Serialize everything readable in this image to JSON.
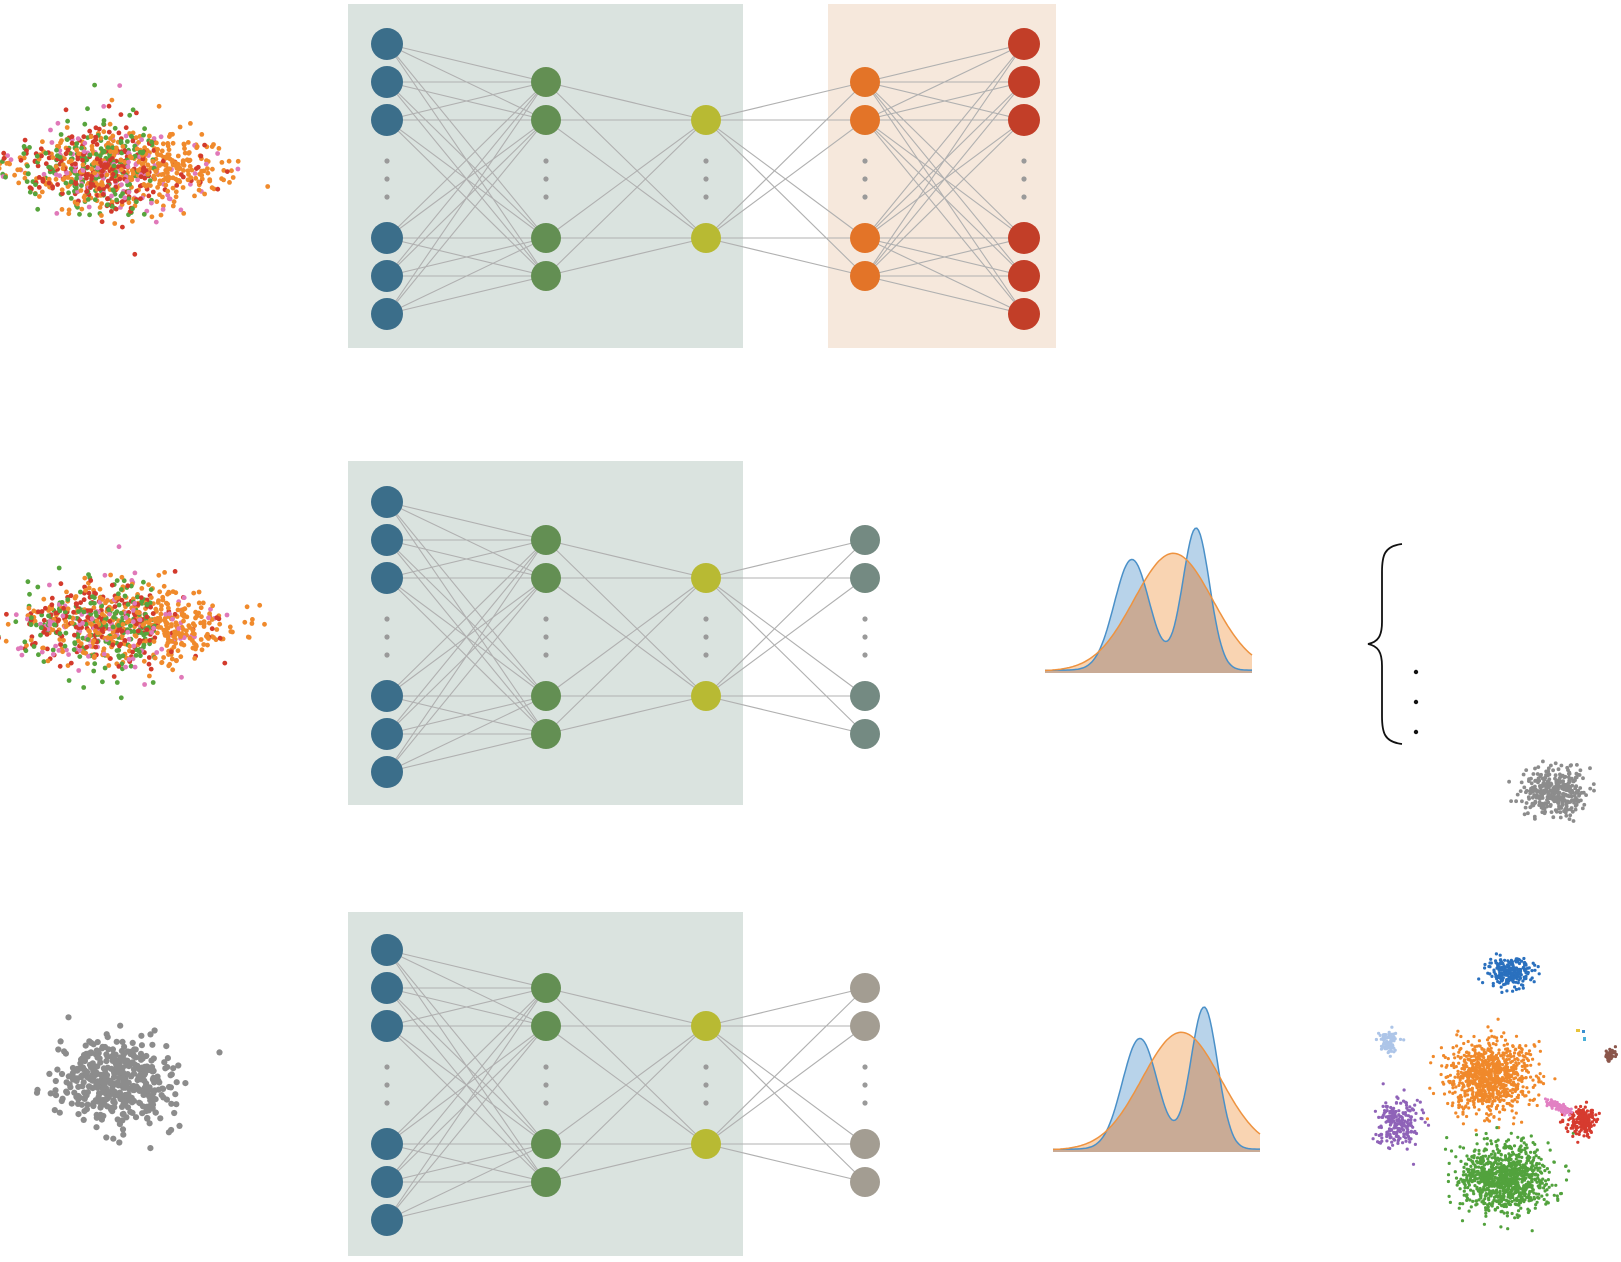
{
  "colors": {
    "encoder_panel": "#dae3df",
    "decoder_panel": "#f6e8dc",
    "input_node": "#3b6e8a",
    "hidden_node": "#638f53",
    "latent_node": "#b8ba33",
    "decoder_hidden_node": "#e37428",
    "output_node": "#c23e28",
    "classifier_node_row2": "#748a82",
    "classifier_node_row3": "#a39d92",
    "connection": "#b0b0b0",
    "ellipsis_dot": "#9a9a9a",
    "density_blue_fill": "#b8d3ea",
    "density_blue_line": "#4a90c8",
    "density_orange_fill": "#f8cca4",
    "density_orange_line": "#ee9340",
    "density_overlap": "#c9ab96",
    "scatter_gray": "#8c8c8c"
  },
  "rows": [
    {
      "name": "autoencoder",
      "output_role": "reconstruction"
    },
    {
      "name": "classifier-a",
      "output_role": "classifier-output"
    },
    {
      "name": "classifier-b",
      "output_role": "classifier-output"
    }
  ],
  "scatter_palette": [
    "#f08a2c",
    "#d33a2c",
    "#57a43d",
    "#e079b9"
  ],
  "cluster_palette": [
    "#2a70be",
    "#f0892b",
    "#52a23d",
    "#8f63b8",
    "#d63b2f",
    "#adc5e8",
    "#8b564b",
    "#e280c3"
  ],
  "brace_dots": "···"
}
